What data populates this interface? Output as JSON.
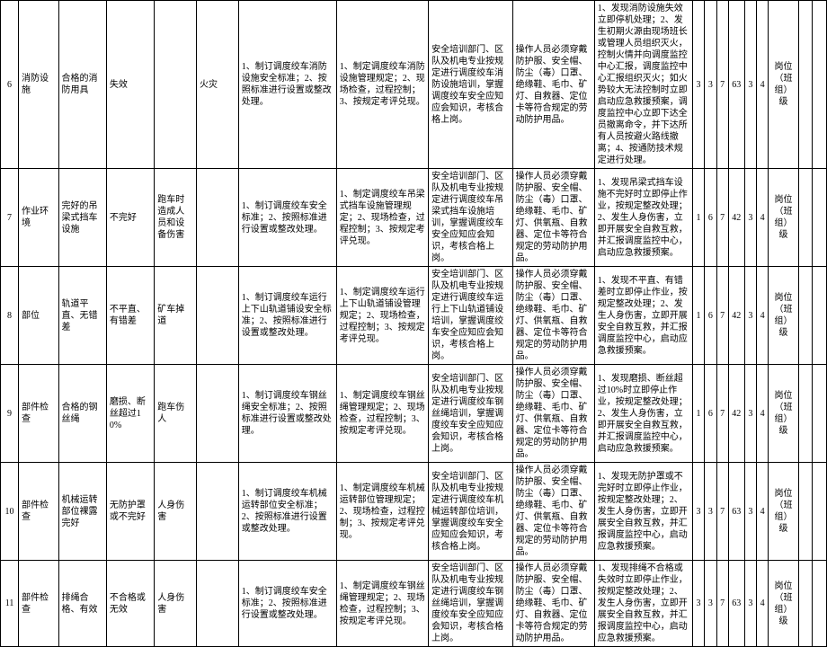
{
  "table": {
    "rows": [
      {
        "no": "6",
        "col1": "消防设施",
        "col2": "合格的消防用具",
        "col3": "失效",
        "col4": "",
        "col5": "火灾",
        "col6": "1、制订调度绞车消防设施安全标准；2、按照标准进行设置或整改处理。",
        "col7": "1、制定调度绞车消防设施管理规定；2、现场检查，过程控制；3、按规定考评兑现。",
        "col8": "安全培训部门、区队及机电专业按规定进行调度绞车消防设施培训，掌握调度绞车安全应知应会知识，考核合格上岗。",
        "col9": "操作人员必须穿戴防护服、安全帽、防尘（毒）口罩、绝缘鞋、毛巾、矿灯、自救器、定位卡等符合规定的劳动防护用品。",
        "col10": "1、发现消防设施失效立即停机处理；2、发生初期火源由现场班长或管理人员组织灭火，控制火情并向调度监控中心汇报，调度监控中心汇报组织灭火；如火势较大无法控制时立即启动应急救援预案，调度监控中心立即下达全员撤离命令，并下达所有人员按避火路线撤离；4、按通防技术规定进行处理。",
        "n1": "3",
        "n2": "3",
        "n3": "7",
        "n4": "63",
        "n5": "3",
        "n6": "4",
        "col17": "岗位（班组）级",
        "col18": "",
        "col19": ""
      },
      {
        "no": "7",
        "col1": "作业环境",
        "col2": "完好的吊梁式挡车设施",
        "col3": "不完好",
        "col4": "跑车时造成人员和设备伤害",
        "col5": "",
        "col6": "1、制订调度绞车安全标准；2、按照标准进行设置或整改处理。",
        "col7": "1、制定调度绞车吊梁式挡车设施管理规定；2、现场检查，过程控制；3、按规定考评兑现。",
        "col8": "安全培训部门、区队及机电专业按规定进行调度绞车吊梁式挡车设施培训，掌握调度绞车安全应知应会知识，考核合格上岗。",
        "col9": "操作人员必须穿戴防护服、安全帽、防尘（毒）口罩、绝缘鞋、毛巾、矿灯、供氧瓶、自救器、定位卡等符合规定的劳动防护用品。",
        "col10": "1、发现吊梁式挡车设施不完好时立即停止作业，按规定整改处理；2、发生人身伤害，立即开展安全自救互救，并汇报调度监控中心，启动应急救援预案。",
        "n1": "1",
        "n2": "6",
        "n3": "7",
        "n4": "42",
        "n5": "3",
        "n6": "4",
        "col17": "岗位（班组）级",
        "col18": "",
        "col19": ""
      },
      {
        "no": "8",
        "col1": "部位",
        "col2": "轨道平直、无错差",
        "col3": "不平直、有错差",
        "col4": "矿车掉道",
        "col5": "",
        "col6": "1、制订调度绞车运行上下山轨道铺设安全标准；2、按照标准进行设置或整改处理。",
        "col7": "1、制定调度绞车运行上下山轨道铺设管理规定；2、现场检查，过程控制；3、按规定考评兑现。",
        "col8": "安全培训部门、区队及机电专业按规定进行调度绞车运行上下山轨道铺设培训，掌握调度绞车安全应知应会知识，考核合格上岗。",
        "col9": "操作人员必须穿戴防护服、安全帽、防尘（毒）口罩、绝缘鞋、毛巾、矿灯、供氧瓶、自救器、定位卡等符合规定的劳动防护用品。",
        "col10": "1、发现不平直、有错差时立即停止作业，按规定整改处理；2、发生人身伤害，立即开展安全自救互救，并汇报调度监控中心，启动应急救援预案。",
        "n1": "1",
        "n2": "6",
        "n3": "7",
        "n4": "42",
        "n5": "3",
        "n6": "4",
        "col17": "岗位（班组）级",
        "col18": "",
        "col19": ""
      },
      {
        "no": "9",
        "col1": "部件检查",
        "col2": "合格的钢丝绳",
        "col3": "磨损、断丝超过10%",
        "col4": "跑车伤人",
        "col5": "",
        "col6": "1、制订调度绞车钢丝绳安全标准；2、按照标准进行设置或整改处理。",
        "col7": "1、制定调度绞车钢丝绳管理规定；2、现场检查，过程控制；3、按规定考评兑现。",
        "col8": "安全培训部门、区队及机电专业按规定进行调度绞车钢丝绳培训，掌握调度绞车安全应知应会知识，考核合格上岗。",
        "col9": "操作人员必须穿戴防护服、安全帽、防尘（毒）口罩、绝缘鞋、毛巾、矿灯、供氧瓶、自救器、定位卡等符合规定的劳动防护用品。",
        "col10": "1、发现磨损、断丝超过10%时立即停止作业，按规定整改处理；2、发生人身伤害，立即开展安全自救互救，并汇报调度监控中心，启动应急救援预案。",
        "n1": "1",
        "n2": "6",
        "n3": "7",
        "n4": "42",
        "n5": "3",
        "n6": "4",
        "col17": "岗位（班组）级",
        "col18": "",
        "col19": ""
      },
      {
        "no": "10",
        "col1": "部件检查",
        "col2": "机械运转部位裸露完好",
        "col3": "无防护罩或不完好",
        "col4": "人身伤害",
        "col5": "",
        "col6": "1、制订调度绞车机械运转部位安全标准；2、按照标准进行设置或整改处理。",
        "col7": "1、制定调度绞车机械运转部位管理规定；2、现场检查，过程控制；3、按规定考评兑现。",
        "col8": "安全培训部门、区队及机电专业按规定进行调度绞车机械运转部位培训，掌握调度绞车安全应知应会知识，考核合格上岗。",
        "col9": "操作人员必须穿戴防护服、安全帽、防尘（毒）口罩、绝缘鞋、毛巾、矿灯、供氧瓶、自救器、定位卡等符合规定的劳动防护用品。",
        "col10": "1、发现无防护罩或不完好时立即停止作业，按规定整改处理；2、发生人身伤害，立即开展安全自救互救，并汇报调度监控中心，启动应急救援预案。",
        "n1": "3",
        "n2": "3",
        "n3": "7",
        "n4": "63",
        "n5": "3",
        "n6": "4",
        "col17": "岗位（班组）级",
        "col18": "",
        "col19": ""
      },
      {
        "no": "11",
        "col1": "部件检查",
        "col2": "排绳合格、有效",
        "col3": "不合格或无效",
        "col4": "人身伤害",
        "col5": "",
        "col6": "1、制订调度绞车安全标准；2、按照标准进行设置或整改处理。",
        "col7": "1、制定调度绞车钢丝绳管理规定；2、现场检查，过程控制；3、按规定考评兑现。",
        "col8": "安全培训部门、区队及机电专业按规定进行调度绞车钢丝绳培训，掌握调度绞车安全应知应会知识，考核合格上岗。",
        "col9": "操作人员必须穿戴防护服、安全帽、防尘（毒）口罩、绝缘鞋、毛巾、矿灯、自救器、定位卡等符合规定的劳动防护用品。",
        "col10": "1、发现排绳不合格或失效时立即停止作业，按规定整改处理；2、发生人身伤害，立即开展安全自救互救，并汇报调度监控中心，启动应急救援预案。",
        "n1": "3",
        "n2": "3",
        "n3": "7",
        "n4": "63",
        "n5": "3",
        "n6": "4",
        "col17": "岗位（班组）级",
        "col18": "",
        "col19": ""
      }
    ]
  }
}
